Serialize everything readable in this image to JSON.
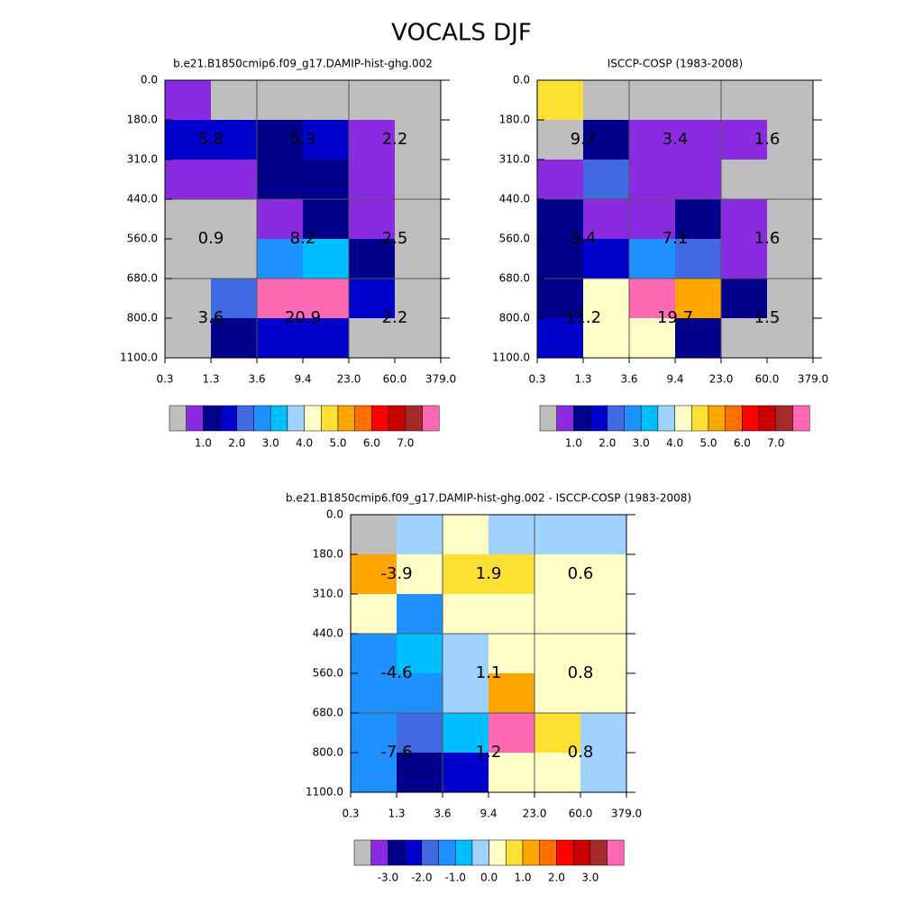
{
  "title": "VOCALS DJF",
  "chart_data": [
    {
      "type": "heatmap",
      "title": "b.e21.B1850cmip6.f09_g17.DAMIP-hist-ghg.002",
      "x_edges": [
        "0.3",
        "1.3",
        "3.6",
        "9.4",
        "23.0",
        "60.0",
        "379.0"
      ],
      "y_edges": [
        "0.0",
        "180.0",
        "310.0",
        "440.0",
        "560.0",
        "680.0",
        "800.0",
        "1100.0"
      ],
      "values": [
        [
          0.7,
          0.2,
          0.2,
          0.2,
          0.2,
          0.2
        ],
        [
          1.7,
          1.7,
          1.2,
          1.7,
          0.7,
          0.2
        ],
        [
          0.7,
          0.7,
          1.2,
          1.2,
          0.7,
          0.2
        ],
        [
          0.2,
          0.2,
          0.7,
          1.2,
          0.7,
          0.2
        ],
        [
          0.2,
          0.2,
          2.7,
          3.2,
          1.2,
          0.2
        ],
        [
          0.2,
          2.2,
          7.8,
          7.8,
          1.7,
          0.2
        ],
        [
          0.2,
          1.2,
          1.7,
          1.7,
          0.2,
          0.2
        ]
      ],
      "cell_labels": [
        [
          5.8,
          5.3,
          2.2
        ],
        [
          0.9,
          8.2,
          2.5
        ],
        [
          3.6,
          20.9,
          2.2
        ]
      ],
      "colors": [
        "#bebebe",
        "#8a2be2",
        "#00008b",
        "#0000cd",
        "#4169e1",
        "#1e90ff",
        "#00bfff",
        "#a0d2ff",
        "#ffffc8",
        "#ffe135",
        "#ffa500",
        "#ff7000",
        "#ff0000",
        "#c80000",
        "#a52a2a",
        "#ff69b4"
      ],
      "levels": [
        0.5,
        1,
        1.5,
        2,
        2.5,
        3,
        3.5,
        4,
        4.5,
        5,
        5.5,
        6,
        6.5,
        7,
        7.5
      ],
      "colorbar_ticks": [
        {
          "value": 1,
          "label": "1.0"
        },
        {
          "value": 2,
          "label": "2.0"
        },
        {
          "value": 3,
          "label": "3.0"
        },
        {
          "value": 4,
          "label": "4.0"
        },
        {
          "value": 5,
          "label": "5.0"
        },
        {
          "value": 6,
          "label": "6.0"
        },
        {
          "value": 7,
          "label": "7.0"
        }
      ]
    },
    {
      "type": "heatmap",
      "title": "ISCCP-COSP (1983-2008)",
      "x_edges": [
        "0.3",
        "1.3",
        "3.6",
        "9.4",
        "23.0",
        "60.0",
        "379.0"
      ],
      "y_edges": [
        "0.0",
        "180.0",
        "310.0",
        "440.0",
        "560.0",
        "680.0",
        "800.0",
        "1100.0"
      ],
      "values": [
        [
          4.7,
          0.2,
          0.2,
          0.2,
          0.2,
          0.2
        ],
        [
          0.2,
          1.2,
          0.7,
          0.7,
          0.7,
          0.2
        ],
        [
          0.7,
          2.2,
          0.7,
          0.7,
          0.2,
          0.2
        ],
        [
          1.2,
          0.7,
          0.7,
          1.2,
          0.7,
          0.2
        ],
        [
          1.2,
          1.7,
          2.7,
          2.2,
          0.7,
          0.2
        ],
        [
          1.2,
          4.2,
          7.8,
          5.2,
          1.2,
          0.2
        ],
        [
          1.7,
          4.2,
          4.2,
          1.2,
          0.2,
          0.2
        ]
      ],
      "cell_labels": [
        [
          9.7,
          3.4,
          1.6
        ],
        [
          5.4,
          7.1,
          1.6
        ],
        [
          11.2,
          19.7,
          1.5
        ]
      ],
      "colors": [
        "#bebebe",
        "#8a2be2",
        "#00008b",
        "#0000cd",
        "#4169e1",
        "#1e90ff",
        "#00bfff",
        "#a0d2ff",
        "#ffffc8",
        "#ffe135",
        "#ffa500",
        "#ff7000",
        "#ff0000",
        "#c80000",
        "#a52a2a",
        "#ff69b4"
      ],
      "levels": [
        0.5,
        1,
        1.5,
        2,
        2.5,
        3,
        3.5,
        4,
        4.5,
        5,
        5.5,
        6,
        6.5,
        7,
        7.5
      ],
      "colorbar_ticks": [
        {
          "value": 1,
          "label": "1.0"
        },
        {
          "value": 2,
          "label": "2.0"
        },
        {
          "value": 3,
          "label": "3.0"
        },
        {
          "value": 4,
          "label": "4.0"
        },
        {
          "value": 5,
          "label": "5.0"
        },
        {
          "value": 6,
          "label": "6.0"
        },
        {
          "value": 7,
          "label": "7.0"
        }
      ]
    },
    {
      "type": "heatmap",
      "title": "b.e21.B1850cmip6.f09_g17.DAMIP-hist-ghg.002 - ISCCP-COSP (1983-2008)",
      "x_edges": [
        "0.3",
        "1.3",
        "3.6",
        "9.4",
        "23.0",
        "60.0",
        "379.0"
      ],
      "y_edges": [
        "0.0",
        "180.0",
        "310.0",
        "440.0",
        "560.0",
        "680.0",
        "800.0",
        "1100.0"
      ],
      "values": [
        [
          -3.8,
          -0.2,
          0.2,
          -0.2,
          -0.2,
          -0.2
        ],
        [
          1.2,
          0.2,
          0.8,
          0.8,
          0.2,
          0.2
        ],
        [
          0.2,
          -1.2,
          0.2,
          0.2,
          0.2,
          0.2
        ],
        [
          -1.2,
          -0.8,
          -0.2,
          0.2,
          0.2,
          0.2
        ],
        [
          -1.2,
          -1.2,
          -0.2,
          1.2,
          0.2,
          0.2
        ],
        [
          -1.2,
          -1.8,
          -0.8,
          3.8,
          0.8,
          -0.2
        ],
        [
          -1.2,
          -2.8,
          -2.2,
          0.2,
          0.2,
          -0.2
        ]
      ],
      "cell_labels": [
        [
          -3.9,
          1.9,
          0.6
        ],
        [
          -4.6,
          1.1,
          0.8
        ],
        [
          -7.6,
          1.2,
          0.8
        ]
      ],
      "colors": [
        "#bebebe",
        "#8a2be2",
        "#00008b",
        "#0000cd",
        "#4169e1",
        "#1e90ff",
        "#00bfff",
        "#a0d2ff",
        "#ffffc8",
        "#ffe135",
        "#ffa500",
        "#ff7000",
        "#ff0000",
        "#c80000",
        "#a52a2a",
        "#ff69b4"
      ],
      "levels": [
        -3.5,
        -3,
        -2.5,
        -2,
        -1.5,
        -1,
        -0.5,
        0,
        0.5,
        1,
        1.5,
        2,
        2.5,
        3,
        3.5
      ],
      "colorbar_ticks": [
        {
          "value": -3,
          "label": "-3.0"
        },
        {
          "value": -2,
          "label": "-2.0"
        },
        {
          "value": -1,
          "label": "-1.0"
        },
        {
          "value": 0,
          "label": "0.0"
        },
        {
          "value": 1,
          "label": "1.0"
        },
        {
          "value": 2,
          "label": "2.0"
        },
        {
          "value": 3,
          "label": "3.0"
        }
      ]
    }
  ]
}
